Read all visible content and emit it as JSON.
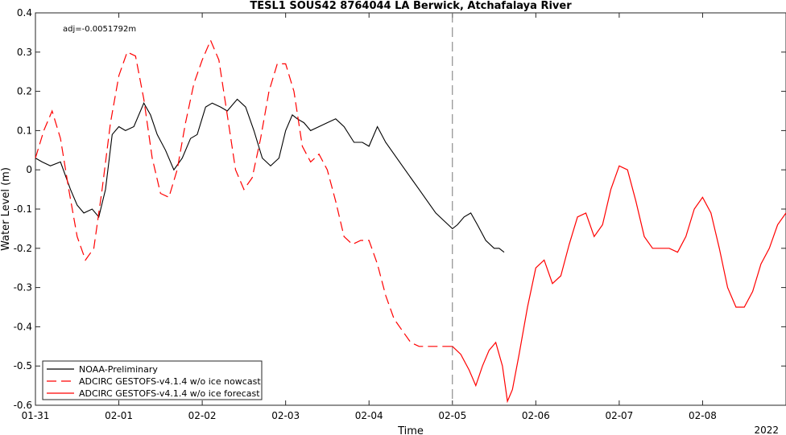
{
  "chart_data": {
    "type": "line",
    "title": "TESL1 SOUS42 8764044 LA Berwick, Atchafalaya River",
    "xlabel": "Time",
    "ylabel": "Water Level (m)",
    "annotation": "adj=-0.0051792m",
    "year_label": "2022",
    "xlim": [
      0,
      9.0
    ],
    "ylim": [
      -0.6,
      0.4
    ],
    "x_ticks": [
      {
        "value": 0,
        "label": "01-31"
      },
      {
        "value": 1,
        "label": "02-01"
      },
      {
        "value": 2,
        "label": "02-02"
      },
      {
        "value": 3,
        "label": "02-03"
      },
      {
        "value": 4,
        "label": "02-04"
      },
      {
        "value": 5,
        "label": "02-05"
      },
      {
        "value": 6,
        "label": "02-06"
      },
      {
        "value": 7,
        "label": "02-07"
      },
      {
        "value": 8,
        "label": "02-08"
      }
    ],
    "y_ticks": [
      {
        "value": 0.4,
        "label": "0.4"
      },
      {
        "value": 0.3,
        "label": "0.3"
      },
      {
        "value": 0.2,
        "label": "0.2"
      },
      {
        "value": 0.1,
        "label": "0.1"
      },
      {
        "value": 0,
        "label": "0"
      },
      {
        "value": -0.1,
        "label": "-0.1"
      },
      {
        "value": -0.2,
        "label": "-0.2"
      },
      {
        "value": -0.3,
        "label": "-0.3"
      },
      {
        "value": -0.4,
        "label": "-0.4"
      },
      {
        "value": -0.5,
        "label": "-0.5"
      },
      {
        "value": -0.6,
        "label": "-0.6"
      }
    ],
    "grid": false,
    "legend_position": "bottom-left",
    "nowcast_forecast_split": 5.0,
    "series": [
      {
        "name": "NOAA-Preliminary",
        "color": "#000000",
        "style": "solid",
        "x": [
          0,
          0.08,
          0.18,
          0.3,
          0.42,
          0.5,
          0.58,
          0.68,
          0.76,
          0.84,
          0.92,
          1.0,
          1.08,
          1.18,
          1.3,
          1.38,
          1.46,
          1.56,
          1.66,
          1.76,
          1.86,
          1.94,
          2.04,
          2.12,
          2.22,
          2.3,
          2.42,
          2.52,
          2.62,
          2.72,
          2.82,
          2.92,
          3.0,
          3.08,
          3.14,
          3.22,
          3.3,
          3.4,
          3.5,
          3.6,
          3.7,
          3.82,
          3.92,
          4.0,
          4.1,
          4.2,
          4.3,
          4.4,
          4.5,
          4.6,
          4.7,
          4.8,
          4.9,
          5.0,
          5.06,
          5.14,
          5.22,
          5.3,
          5.4,
          5.5,
          5.56,
          5.62
        ],
        "y": [
          0.03,
          0.02,
          0.01,
          0.02,
          -0.05,
          -0.09,
          -0.11,
          -0.1,
          -0.12,
          -0.05,
          0.09,
          0.11,
          0.1,
          0.11,
          0.17,
          0.14,
          0.09,
          0.05,
          0.0,
          0.03,
          0.08,
          0.09,
          0.16,
          0.17,
          0.16,
          0.15,
          0.18,
          0.16,
          0.1,
          0.03,
          0.01,
          0.03,
          0.1,
          0.14,
          0.13,
          0.12,
          0.1,
          0.11,
          0.12,
          0.13,
          0.11,
          0.07,
          0.07,
          0.06,
          0.11,
          0.07,
          0.04,
          0.01,
          -0.02,
          -0.05,
          -0.08,
          -0.11,
          -0.13,
          -0.15,
          -0.14,
          -0.12,
          -0.11,
          -0.14,
          -0.18,
          -0.2,
          -0.2,
          -0.21
        ]
      },
      {
        "name": "ADCIRC GESTOFS-v4.1.4 w/o ice nowcast",
        "color": "#ff0000",
        "style": "dashed",
        "x": [
          0,
          0.1,
          0.2,
          0.3,
          0.4,
          0.5,
          0.6,
          0.7,
          0.8,
          0.9,
          1.0,
          1.1,
          1.2,
          1.3,
          1.4,
          1.5,
          1.6,
          1.7,
          1.8,
          1.9,
          2.0,
          2.1,
          2.2,
          2.3,
          2.4,
          2.5,
          2.6,
          2.7,
          2.8,
          2.9,
          3.0,
          3.1,
          3.2,
          3.3,
          3.4,
          3.5,
          3.6,
          3.7,
          3.8,
          3.9,
          4.0,
          4.1,
          4.2,
          4.3,
          4.4,
          4.5,
          4.6,
          4.7,
          4.8,
          4.9,
          5.0
        ],
        "y": [
          0.03,
          0.1,
          0.15,
          0.08,
          -0.05,
          -0.17,
          -0.23,
          -0.2,
          -0.05,
          0.12,
          0.24,
          0.3,
          0.29,
          0.18,
          0.03,
          -0.06,
          -0.07,
          0.0,
          0.12,
          0.22,
          0.28,
          0.33,
          0.28,
          0.14,
          0.0,
          -0.05,
          -0.02,
          0.08,
          0.2,
          0.27,
          0.27,
          0.2,
          0.06,
          0.02,
          0.04,
          0.0,
          -0.08,
          -0.17,
          -0.19,
          -0.18,
          -0.18,
          -0.24,
          -0.32,
          -0.38,
          -0.41,
          -0.44,
          -0.45,
          -0.45,
          -0.45,
          -0.45,
          -0.45
        ]
      },
      {
        "name": "ADCIRC GESTOFS-v4.1.4 w/o ice forecast",
        "color": "#ff0000",
        "style": "solid",
        "x": [
          5.0,
          5.1,
          5.2,
          5.28,
          5.36,
          5.44,
          5.52,
          5.6,
          5.66,
          5.72,
          5.8,
          5.9,
          6.0,
          6.1,
          6.2,
          6.3,
          6.4,
          6.5,
          6.6,
          6.7,
          6.8,
          6.9,
          7.0,
          7.1,
          7.2,
          7.3,
          7.4,
          7.5,
          7.6,
          7.7,
          7.8,
          7.9,
          8.0,
          8.1,
          8.2,
          8.3,
          8.4,
          8.5,
          8.6,
          8.7,
          8.8,
          8.9,
          9.0
        ],
        "y": [
          -0.45,
          -0.47,
          -0.51,
          -0.55,
          -0.5,
          -0.46,
          -0.44,
          -0.5,
          -0.59,
          -0.56,
          -0.47,
          -0.35,
          -0.25,
          -0.23,
          -0.29,
          -0.27,
          -0.19,
          -0.12,
          -0.11,
          -0.17,
          -0.14,
          -0.05,
          0.01,
          0.0,
          -0.08,
          -0.17,
          -0.2,
          -0.2,
          -0.2,
          -0.21,
          -0.17,
          -0.1,
          -0.07,
          -0.11,
          -0.2,
          -0.3,
          -0.35,
          -0.35,
          -0.31,
          -0.24,
          -0.2,
          -0.14,
          -0.11
        ]
      }
    ]
  }
}
